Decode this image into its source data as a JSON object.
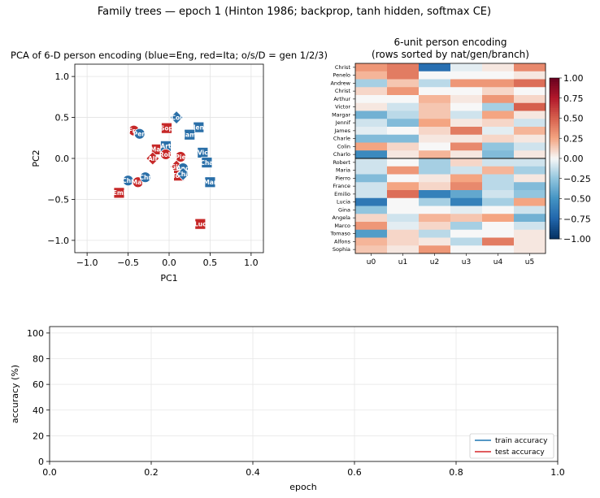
{
  "figure": {
    "suptitle": "Family trees — epoch 1 (Hinton 1986; backprop, tanh hidden, softmax CE)"
  },
  "colors": {
    "english": "#2a6fa8",
    "italian": "#c62828",
    "train_line": "#1f77b4",
    "test_line": "#d62728"
  },
  "chart_data": [
    {
      "type": "scatter",
      "title": "PCA of 6-D person encoding (blue=Eng, red=Ita; o/s/D = gen 1/2/3)",
      "xlabel": "PC1",
      "ylabel": "PC2",
      "xlim": [
        -1.15,
        1.15
      ],
      "ylim": [
        -1.15,
        1.15
      ],
      "xticks": [
        "−1.0",
        "−0.5",
        "0.0",
        "0.5",
        "1.0"
      ],
      "yticks": [
        "−1.0",
        "−0.5",
        "0.0",
        "0.5",
        "1.0"
      ],
      "grid": true,
      "points": [
        {
          "label": "Fra",
          "x": -0.43,
          "y": 0.34,
          "nat": "Ita",
          "gen": 1
        },
        {
          "label": "Pen",
          "x": -0.36,
          "y": 0.3,
          "nat": "Eng",
          "gen": 1
        },
        {
          "label": "Sop",
          "x": -0.03,
          "y": 0.37,
          "nat": "Ita",
          "gen": 2
        },
        {
          "label": "Col",
          "x": 0.09,
          "y": 0.5,
          "nat": "Eng",
          "gen": 3
        },
        {
          "label": "Jen",
          "x": 0.36,
          "y": 0.38,
          "nat": "Eng",
          "gen": 2
        },
        {
          "label": "Jam",
          "x": 0.25,
          "y": 0.29,
          "nat": "Eng",
          "gen": 2
        },
        {
          "label": "Mar",
          "x": -0.15,
          "y": 0.11,
          "nat": "Ita",
          "gen": 2
        },
        {
          "label": "Art",
          "x": -0.04,
          "y": 0.15,
          "nat": "Eng",
          "gen": 2
        },
        {
          "label": "Alf",
          "x": -0.2,
          "y": 0.0,
          "nat": "Ita",
          "gen": 3
        },
        {
          "label": "Rob",
          "x": -0.04,
          "y": 0.05,
          "nat": "Ita",
          "gen": 1
        },
        {
          "label": "Pie",
          "x": 0.14,
          "y": 0.02,
          "nat": "Ita",
          "gen": 1
        },
        {
          "label": "Vic",
          "x": 0.41,
          "y": 0.07,
          "nat": "Eng",
          "gen": 2
        },
        {
          "label": "Cha",
          "x": 0.46,
          "y": -0.05,
          "nat": "Eng",
          "gen": 2
        },
        {
          "label": "Gin",
          "x": 0.09,
          "y": -0.1,
          "nat": "Ita",
          "gen": 3
        },
        {
          "label": "And",
          "x": 0.17,
          "y": -0.12,
          "nat": "Eng",
          "gen": 1
        },
        {
          "label": "Tom",
          "x": 0.12,
          "y": -0.21,
          "nat": "Ita",
          "gen": 2
        },
        {
          "label": "Cha",
          "x": 0.17,
          "y": -0.19,
          "nat": "Eng",
          "gen": 3
        },
        {
          "label": "Chr",
          "x": -0.5,
          "y": -0.27,
          "nat": "Eng",
          "gen": 1
        },
        {
          "label": "Mar",
          "x": -0.38,
          "y": -0.29,
          "nat": "Ita",
          "gen": 1
        },
        {
          "label": "Chr",
          "x": -0.29,
          "y": -0.23,
          "nat": "Eng",
          "gen": 1
        },
        {
          "label": "Mar",
          "x": 0.5,
          "y": -0.29,
          "nat": "Eng",
          "gen": 2
        },
        {
          "label": "Emi",
          "x": -0.61,
          "y": -0.42,
          "nat": "Ita",
          "gen": 2
        },
        {
          "label": "Luc",
          "x": 0.38,
          "y": -0.8,
          "nat": "Ita",
          "gen": 2
        }
      ]
    },
    {
      "type": "heatmap",
      "title": "6-unit person encoding",
      "subtitle": "(rows sorted by nat/gen/branch)",
      "columns": [
        "u0",
        "u1",
        "u2",
        "u3",
        "u4",
        "u5"
      ],
      "rows": [
        "Christ",
        "Penelo",
        "Andrew",
        "Christ",
        "Arthur",
        "Victor",
        "Margar",
        "Jennif",
        "James",
        "Charle",
        "Colin",
        "Charlo",
        "Robert",
        "Maria",
        "Pierro",
        "France",
        "Emilio",
        "Lucia",
        "Gina",
        "Angela",
        "Marco",
        "Tomaso",
        "Alfons",
        "Sophia"
      ],
      "separator_after_row": 11,
      "values": [
        [
          0.3,
          0.4,
          -0.7,
          -0.05,
          0.05,
          0.35
        ],
        [
          0.2,
          0.4,
          0.0,
          0.0,
          0.0,
          0.05
        ],
        [
          -0.2,
          0.15,
          -0.15,
          0.3,
          0.3,
          0.45
        ],
        [
          0.1,
          0.3,
          0.0,
          0.0,
          0.1,
          0.0
        ],
        [
          0.0,
          0.0,
          0.2,
          0.05,
          0.3,
          0.1
        ],
        [
          0.05,
          -0.1,
          0.15,
          0.0,
          -0.2,
          0.5
        ],
        [
          -0.35,
          -0.15,
          0.15,
          -0.1,
          0.25,
          0.05
        ],
        [
          -0.1,
          -0.3,
          0.25,
          0.05,
          0.1,
          -0.1
        ],
        [
          -0.05,
          0.0,
          0.1,
          0.4,
          -0.05,
          0.2
        ],
        [
          -0.3,
          -0.3,
          0.05,
          0.05,
          0.1,
          0.05
        ],
        [
          0.25,
          0.1,
          0.0,
          0.35,
          -0.25,
          -0.1
        ],
        [
          -0.55,
          0.05,
          0.2,
          0.05,
          -0.3,
          0.05
        ],
        [
          -0.1,
          0.0,
          -0.2,
          0.1,
          -0.1,
          -0.1
        ],
        [
          -0.1,
          0.3,
          -0.2,
          -0.1,
          0.2,
          -0.2
        ],
        [
          -0.3,
          0.0,
          0.05,
          0.25,
          -0.15,
          0.05
        ],
        [
          -0.1,
          0.25,
          0.1,
          0.35,
          -0.15,
          -0.3
        ],
        [
          -0.1,
          0.45,
          -0.6,
          -0.4,
          -0.1,
          -0.25
        ],
        [
          -0.65,
          0.0,
          -0.2,
          -0.6,
          -0.2,
          0.25
        ],
        [
          -0.25,
          0.0,
          0.0,
          -0.05,
          0.0,
          -0.1
        ],
        [
          0.1,
          -0.1,
          0.2,
          0.15,
          0.25,
          -0.35
        ],
        [
          0.3,
          -0.05,
          0.1,
          -0.2,
          0.0,
          -0.1
        ],
        [
          -0.45,
          0.1,
          -0.15,
          0.0,
          0.0,
          0.05
        ],
        [
          0.2,
          0.1,
          0.05,
          -0.15,
          0.4,
          0.05
        ],
        [
          0.15,
          0.05,
          0.3,
          0.0,
          0.0,
          0.05
        ]
      ],
      "vmin": -1.0,
      "vmax": 1.0,
      "colorbar_ticks": [
        "1.00",
        "0.75",
        "0.50",
        "0.25",
        "0.00",
        "−0.25",
        "−0.50",
        "−0.75",
        "−1.00"
      ]
    },
    {
      "type": "line",
      "xlabel": "epoch",
      "ylabel": "accuracy (%)",
      "xlim": [
        0.0,
        1.0
      ],
      "ylim": [
        0,
        105
      ],
      "xticks": [
        "0.0",
        "0.2",
        "0.4",
        "0.6",
        "0.8",
        "1.0"
      ],
      "yticks": [
        "0",
        "20",
        "40",
        "60",
        "80",
        "100"
      ],
      "grid": true,
      "legend_position": "lower-right",
      "series": [
        {
          "name": "train accuracy",
          "values": []
        },
        {
          "name": "test accuracy",
          "values": []
        }
      ]
    }
  ]
}
